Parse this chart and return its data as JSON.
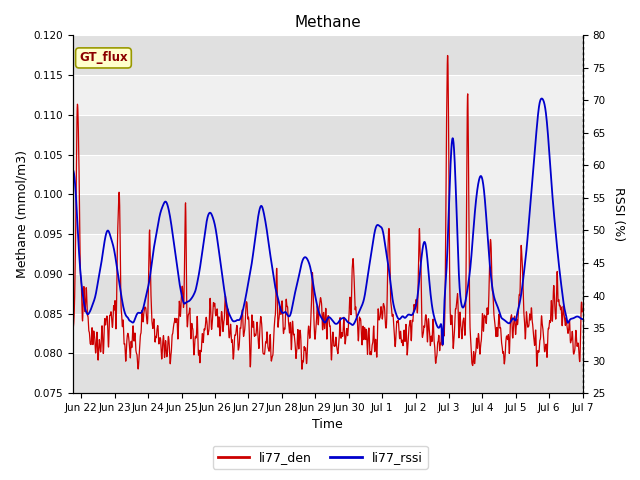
{
  "title": "Methane",
  "ylabel_left": "Methane (mmol/m3)",
  "ylabel_right": "RSSI (%)",
  "xlabel": "Time",
  "ylim_left": [
    0.075,
    0.12
  ],
  "ylim_right": [
    25,
    80
  ],
  "yticks_left": [
    0.075,
    0.08,
    0.085,
    0.09,
    0.095,
    0.1,
    0.105,
    0.11,
    0.115,
    0.12
  ],
  "yticks_right": [
    25,
    30,
    35,
    40,
    45,
    50,
    55,
    60,
    65,
    70,
    75,
    80
  ],
  "legend_label1": "li77_den",
  "legend_label2": "li77_rssi",
  "color1": "#cc0000",
  "color2": "#0000cc",
  "annotation_text": "GT_flux",
  "annotation_bg": "#ffffcc",
  "annotation_border": "#cccc00",
  "bg_color": "#ffffff",
  "plot_bg_color": "#f0f0f0",
  "band_light": "#f0f0f0",
  "band_dark": "#e0e0e0",
  "tick_label_fontsize": 7.5,
  "axis_label_fontsize": 9,
  "title_fontsize": 11,
  "linewidth_red": 0.9,
  "linewidth_blue": 1.3
}
